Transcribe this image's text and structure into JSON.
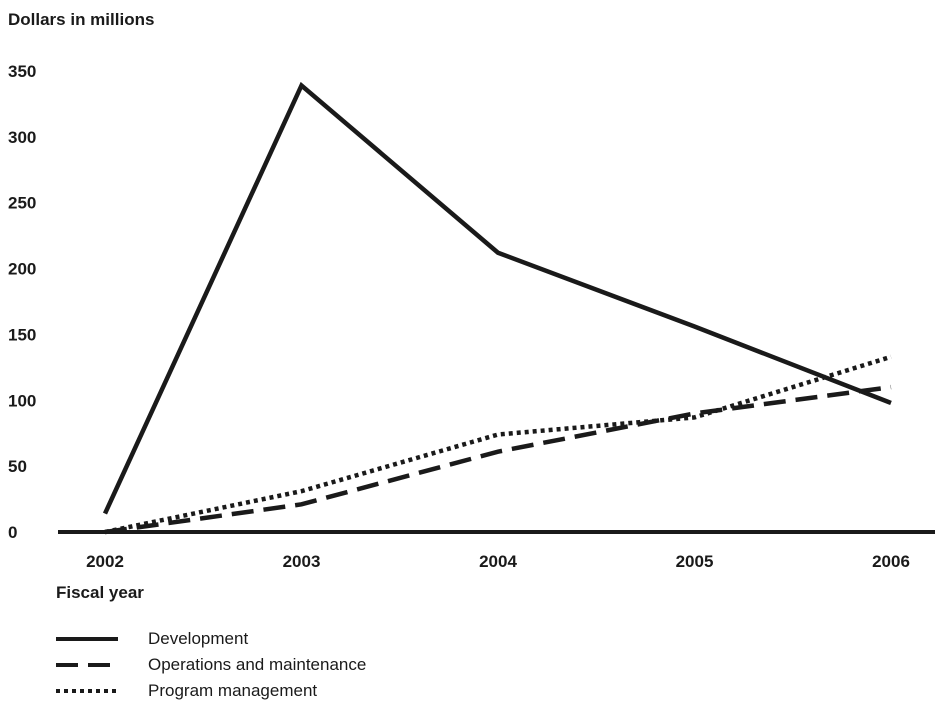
{
  "chart_data": {
    "type": "line",
    "ylabel": "Dollars in millions",
    "xlabel": "Fiscal year",
    "x": [
      "2002",
      "2003",
      "2004",
      "2005",
      "2006"
    ],
    "ylim": [
      0,
      350
    ],
    "yticks": [
      0,
      50,
      100,
      150,
      200,
      250,
      300,
      350
    ],
    "grid": false,
    "legend_position": "bottom-left",
    "series": [
      {
        "name": "Development",
        "values": [
          14,
          339,
          212,
          156,
          98
        ],
        "style": "solid",
        "color": "#1a1a1a"
      },
      {
        "name": "Operations and maintenance",
        "values": [
          0,
          21,
          61,
          90,
          110
        ],
        "style": "dashed",
        "color": "#1a1a1a"
      },
      {
        "name": "Program management",
        "values": [
          0,
          31,
          74,
          87,
          133
        ],
        "style": "dotted",
        "color": "#1a1a1a"
      }
    ]
  }
}
